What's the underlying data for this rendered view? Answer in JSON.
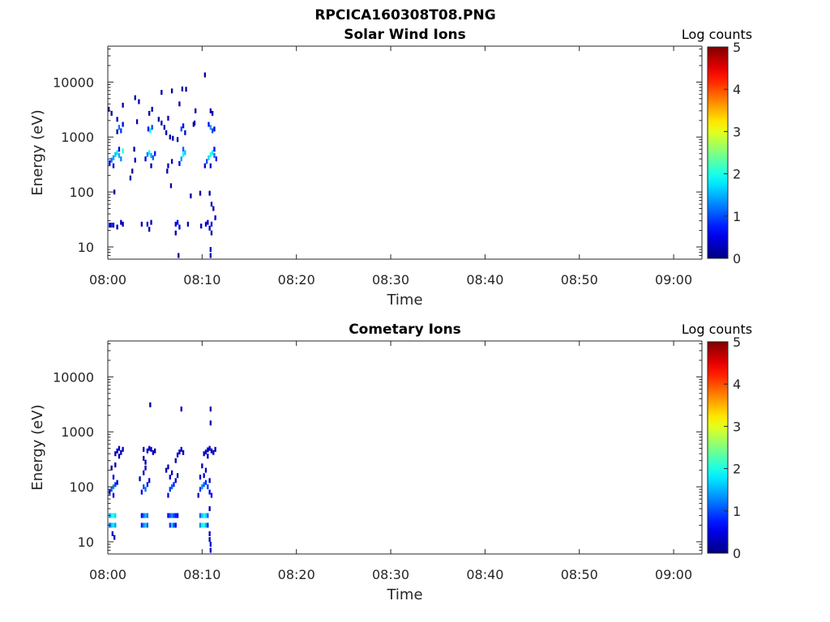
{
  "figure": {
    "title": "RPCICA160308T08.PNG"
  },
  "chart_data": [
    {
      "type": "heatmap",
      "title": "Solar Wind Ions",
      "xlabel": "Time",
      "ylabel": "Energy (eV)",
      "x_ticks": [
        "08:00",
        "08:10",
        "08:20",
        "08:30",
        "08:40",
        "08:50",
        "09:00"
      ],
      "x_range": [
        "08:00",
        "09:03"
      ],
      "y_scale": "log",
      "y_range": [
        6,
        45000
      ],
      "y_ticks": [
        10,
        100,
        1000,
        10000
      ],
      "y_tick_labels": [
        "10",
        "100",
        "1000",
        "10000"
      ],
      "colorbar": {
        "label": "Log counts",
        "range": [
          0,
          5
        ],
        "ticks": [
          "0",
          "1",
          "2",
          "3",
          "4",
          "5"
        ],
        "colormap": "jet"
      },
      "cells": [
        [
          0.2,
          25,
          0.3
        ],
        [
          0.4,
          25,
          0.8
        ],
        [
          0.6,
          25,
          0.4
        ],
        [
          1.0,
          23,
          0.2
        ],
        [
          1.4,
          28,
          0.3
        ],
        [
          1.6,
          26,
          0.2
        ],
        [
          0.2,
          340,
          0.6
        ],
        [
          0.4,
          380,
          1.2
        ],
        [
          0.6,
          420,
          1.4
        ],
        [
          0.8,
          480,
          1.6
        ],
        [
          1.0,
          520,
          1.8
        ],
        [
          1.2,
          460,
          1.5
        ],
        [
          1.4,
          400,
          1.3
        ],
        [
          1.6,
          560,
          2.0
        ],
        [
          0.6,
          300,
          0.3
        ],
        [
          1.2,
          600,
          0.6
        ],
        [
          1.2,
          1500,
          1.2
        ],
        [
          1.4,
          1300,
          0.9
        ],
        [
          1.6,
          1700,
          0.5
        ],
        [
          1.0,
          1250,
          0.2
        ],
        [
          0.1,
          3200,
          0.2
        ],
        [
          0.4,
          2700,
          0.2
        ],
        [
          0.7,
          100,
          0.2
        ],
        [
          1.6,
          3800,
          0.2
        ],
        [
          1.0,
          2100,
          0.3
        ],
        [
          2.4,
          180,
          0.2
        ],
        [
          2.6,
          240,
          0.2
        ],
        [
          2.9,
          380,
          0.3
        ],
        [
          2.8,
          600,
          0.2
        ],
        [
          3.1,
          1900,
          0.2
        ],
        [
          3.3,
          4400,
          0.2
        ],
        [
          2.9,
          5200,
          0.2
        ],
        [
          4.0,
          400,
          0.4
        ],
        [
          4.2,
          480,
          1.3
        ],
        [
          4.4,
          520,
          1.8
        ],
        [
          4.6,
          460,
          1.5
        ],
        [
          4.8,
          420,
          1.1
        ],
        [
          5.0,
          500,
          0.7
        ],
        [
          4.6,
          300,
          0.3
        ],
        [
          4.3,
          1400,
          0.5
        ],
        [
          4.5,
          1300,
          1.9
        ],
        [
          4.7,
          1500,
          1.0
        ],
        [
          4.4,
          2700,
          0.2
        ],
        [
          4.7,
          3200,
          0.2
        ],
        [
          4.2,
          26,
          0.4
        ],
        [
          4.4,
          21,
          0.3
        ],
        [
          4.6,
          28,
          0.3
        ],
        [
          3.6,
          26,
          0.2
        ],
        [
          5.4,
          2100,
          0.2
        ],
        [
          5.7,
          1800,
          0.2
        ],
        [
          5.7,
          6500,
          0.2
        ],
        [
          6.0,
          1500,
          0.2
        ],
        [
          6.2,
          1200,
          0.2
        ],
        [
          6.3,
          240,
          0.2
        ],
        [
          6.4,
          300,
          0.3
        ],
        [
          6.8,
          360,
          0.3
        ],
        [
          6.6,
          1000,
          0.2
        ],
        [
          6.9,
          950,
          0.2
        ],
        [
          6.4,
          2200,
          0.2
        ],
        [
          6.8,
          6900,
          0.2
        ],
        [
          6.7,
          130,
          0.2
        ],
        [
          7.6,
          330,
          0.5
        ],
        [
          7.8,
          400,
          1.4
        ],
        [
          8.0,
          480,
          1.9
        ],
        [
          8.2,
          520,
          1.6
        ],
        [
          8.0,
          600,
          1.1
        ],
        [
          7.8,
          1400,
          1.0
        ],
        [
          8.0,
          1600,
          0.6
        ],
        [
          8.2,
          1200,
          0.4
        ],
        [
          7.4,
          900,
          0.2
        ],
        [
          7.9,
          7500,
          0.2
        ],
        [
          8.3,
          7400,
          0.2
        ],
        [
          7.6,
          4000,
          0.2
        ],
        [
          7.2,
          26,
          0.4
        ],
        [
          7.4,
          28,
          0.6
        ],
        [
          7.6,
          23,
          0.3
        ],
        [
          7.2,
          18,
          0.2
        ],
        [
          7.5,
          7,
          0.2
        ],
        [
          8.5,
          26,
          0.2
        ],
        [
          8.8,
          85,
          0.2
        ],
        [
          9.1,
          1700,
          0.2
        ],
        [
          9.3,
          3000,
          0.2
        ],
        [
          9.2,
          1800,
          0.2
        ],
        [
          10.3,
          300,
          0.4
        ],
        [
          10.5,
          360,
          1.0
        ],
        [
          10.7,
          420,
          1.7
        ],
        [
          10.9,
          480,
          2.1
        ],
        [
          11.1,
          520,
          1.8
        ],
        [
          11.3,
          460,
          1.2
        ],
        [
          11.5,
          400,
          0.7
        ],
        [
          10.9,
          300,
          0.3
        ],
        [
          11.3,
          600,
          0.6
        ],
        [
          10.9,
          1500,
          1.4
        ],
        [
          11.1,
          1300,
          1.0
        ],
        [
          10.7,
          1700,
          0.7
        ],
        [
          11.3,
          1400,
          0.5
        ],
        [
          10.9,
          3000,
          0.2
        ],
        [
          11.1,
          2700,
          0.2
        ],
        [
          10.3,
          13500,
          0.2
        ],
        [
          10.4,
          26,
          0.4
        ],
        [
          10.6,
          28,
          0.3
        ],
        [
          10.8,
          22,
          0.3
        ],
        [
          11.0,
          26,
          0.5
        ],
        [
          11.2,
          50,
          0.2
        ],
        [
          11.4,
          34,
          0.3
        ],
        [
          10.8,
          95,
          0.2
        ],
        [
          11.0,
          60,
          0.3
        ],
        [
          10.9,
          9,
          0.3
        ],
        [
          10.9,
          7,
          0.3
        ],
        [
          11.0,
          18,
          0.2
        ],
        [
          9.8,
          95,
          0.2
        ],
        [
          9.9,
          24,
          0.2
        ]
      ]
    },
    {
      "type": "heatmap",
      "title": "Cometary Ions",
      "xlabel": "Time",
      "ylabel": "Energy (eV)",
      "x_ticks": [
        "08:00",
        "08:10",
        "08:20",
        "08:30",
        "08:40",
        "08:50",
        "09:00"
      ],
      "x_range": [
        "08:00",
        "09:03"
      ],
      "y_scale": "log",
      "y_range": [
        6,
        45000
      ],
      "y_ticks": [
        10,
        100,
        1000,
        10000
      ],
      "y_tick_labels": [
        "10",
        "100",
        "1000",
        "10000"
      ],
      "colorbar": {
        "label": "Log counts",
        "range": [
          0,
          5
        ],
        "ticks": [
          "0",
          "1",
          "2",
          "3",
          "4",
          "5"
        ],
        "colormap": "jet"
      },
      "cells": [
        [
          0.2,
          30,
          1.4
        ],
        [
          0.4,
          30,
          1.9
        ],
        [
          0.6,
          30,
          2.1
        ],
        [
          0.8,
          30,
          1.7
        ],
        [
          0.2,
          20,
          1.1
        ],
        [
          0.4,
          20,
          1.6
        ],
        [
          0.6,
          20,
          1.8
        ],
        [
          0.8,
          20,
          1.4
        ],
        [
          0.5,
          14,
          0.4
        ],
        [
          0.7,
          12,
          0.3
        ],
        [
          0.2,
          80,
          0.5
        ],
        [
          0.4,
          90,
          1.1
        ],
        [
          0.6,
          100,
          1.3
        ],
        [
          0.8,
          110,
          0.9
        ],
        [
          1.0,
          120,
          0.5
        ],
        [
          0.6,
          70,
          0.4
        ],
        [
          0.6,
          150,
          0.4
        ],
        [
          0.4,
          220,
          0.2
        ],
        [
          0.8,
          250,
          0.2
        ],
        [
          0.8,
          400,
          0.3
        ],
        [
          1.0,
          450,
          0.4
        ],
        [
          1.2,
          500,
          0.4
        ],
        [
          1.4,
          420,
          0.3
        ],
        [
          1.6,
          480,
          0.3
        ],
        [
          1.2,
          360,
          0.2
        ],
        [
          3.6,
          30,
          0.6
        ],
        [
          3.8,
          30,
          1.1
        ],
        [
          4.0,
          30,
          1.5
        ],
        [
          4.2,
          30,
          1.2
        ],
        [
          3.6,
          20,
          0.8
        ],
        [
          3.8,
          20,
          1.3
        ],
        [
          4.0,
          20,
          1.6
        ],
        [
          4.2,
          20,
          1.1
        ],
        [
          3.6,
          80,
          0.6
        ],
        [
          3.8,
          100,
          1.0
        ],
        [
          4.0,
          90,
          1.2
        ],
        [
          4.2,
          110,
          0.7
        ],
        [
          4.4,
          130,
          0.4
        ],
        [
          3.4,
          140,
          0.3
        ],
        [
          3.8,
          180,
          0.3
        ],
        [
          4.0,
          220,
          0.2
        ],
        [
          3.8,
          330,
          0.2
        ],
        [
          4.0,
          280,
          0.2
        ],
        [
          3.8,
          480,
          0.3
        ],
        [
          4.2,
          450,
          0.4
        ],
        [
          4.4,
          500,
          0.4
        ],
        [
          4.6,
          480,
          0.3
        ],
        [
          4.8,
          420,
          0.3
        ],
        [
          5.0,
          450,
          0.2
        ],
        [
          4.5,
          3100,
          0.2
        ],
        [
          6.4,
          30,
          0.6
        ],
        [
          6.6,
          30,
          1.0
        ],
        [
          6.8,
          30,
          1.3
        ],
        [
          7.0,
          30,
          0.9
        ],
        [
          7.2,
          30,
          0.7
        ],
        [
          7.4,
          30,
          0.5
        ],
        [
          6.6,
          20,
          0.9
        ],
        [
          6.8,
          20,
          1.7
        ],
        [
          7.0,
          20,
          1.0
        ],
        [
          7.2,
          20,
          0.5
        ],
        [
          6.4,
          70,
          0.5
        ],
        [
          6.6,
          90,
          0.9
        ],
        [
          6.8,
          100,
          1.1
        ],
        [
          7.0,
          110,
          0.8
        ],
        [
          7.2,
          130,
          0.4
        ],
        [
          6.2,
          200,
          0.2
        ],
        [
          6.4,
          230,
          0.3
        ],
        [
          6.8,
          180,
          0.3
        ],
        [
          6.6,
          150,
          0.4
        ],
        [
          7.4,
          160,
          0.2
        ],
        [
          7.2,
          300,
          0.2
        ],
        [
          7.4,
          380,
          0.3
        ],
        [
          7.6,
          430,
          0.4
        ],
        [
          7.8,
          480,
          0.3
        ],
        [
          8.0,
          420,
          0.2
        ],
        [
          7.8,
          2600,
          0.2
        ],
        [
          9.8,
          30,
          1.1
        ],
        [
          10.0,
          30,
          1.6
        ],
        [
          10.2,
          30,
          2.0
        ],
        [
          10.4,
          30,
          1.7
        ],
        [
          10.6,
          30,
          1.1
        ],
        [
          9.8,
          20,
          1.3
        ],
        [
          10.0,
          20,
          1.9
        ],
        [
          10.2,
          20,
          2.1
        ],
        [
          10.4,
          20,
          1.5
        ],
        [
          10.6,
          20,
          0.8
        ],
        [
          10.8,
          14,
          0.4
        ],
        [
          10.8,
          11,
          0.4
        ],
        [
          10.9,
          9,
          0.3
        ],
        [
          10.9,
          7,
          0.3
        ],
        [
          10.8,
          40,
          0.3
        ],
        [
          9.6,
          70,
          0.4
        ],
        [
          9.8,
          90,
          0.9
        ],
        [
          10.0,
          100,
          1.3
        ],
        [
          10.2,
          110,
          1.1
        ],
        [
          10.4,
          120,
          0.8
        ],
        [
          10.6,
          100,
          0.9
        ],
        [
          10.8,
          80,
          0.6
        ],
        [
          11.0,
          70,
          0.5
        ],
        [
          10.2,
          160,
          0.4
        ],
        [
          10.4,
          200,
          0.3
        ],
        [
          9.8,
          150,
          0.3
        ],
        [
          10.8,
          130,
          0.3
        ],
        [
          10.0,
          240,
          0.2
        ],
        [
          10.2,
          400,
          0.3
        ],
        [
          10.4,
          430,
          0.4
        ],
        [
          10.6,
          470,
          0.4
        ],
        [
          10.8,
          500,
          0.3
        ],
        [
          11.0,
          450,
          0.4
        ],
        [
          11.2,
          420,
          0.3
        ],
        [
          11.4,
          480,
          0.2
        ],
        [
          10.6,
          360,
          0.2
        ],
        [
          10.9,
          1450,
          0.2
        ],
        [
          10.9,
          2600,
          0.2
        ]
      ]
    }
  ]
}
